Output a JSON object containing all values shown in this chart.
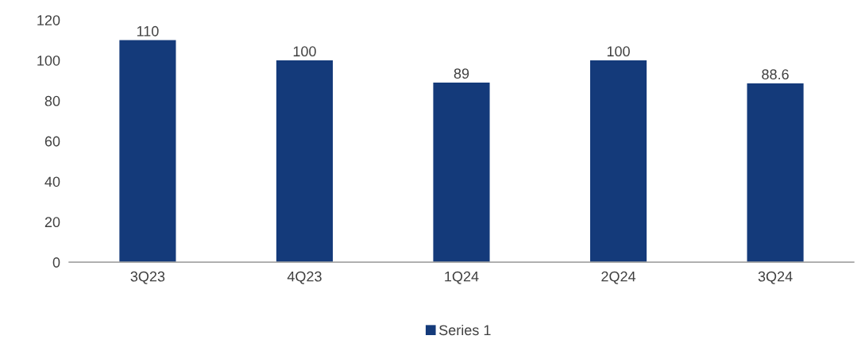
{
  "chart_data": {
    "type": "bar",
    "categories": [
      "3Q23",
      "4Q23",
      "1Q24",
      "2Q24",
      "3Q24"
    ],
    "series": [
      {
        "name": "Series 1",
        "color": "#143a7a",
        "values": [
          110,
          100,
          89,
          100,
          88.6
        ]
      }
    ],
    "ylim": [
      0,
      120
    ],
    "yticks": [
      0,
      20,
      40,
      60,
      80,
      100,
      120
    ],
    "data_labels": true,
    "legend": "bottom",
    "grid": false
  }
}
